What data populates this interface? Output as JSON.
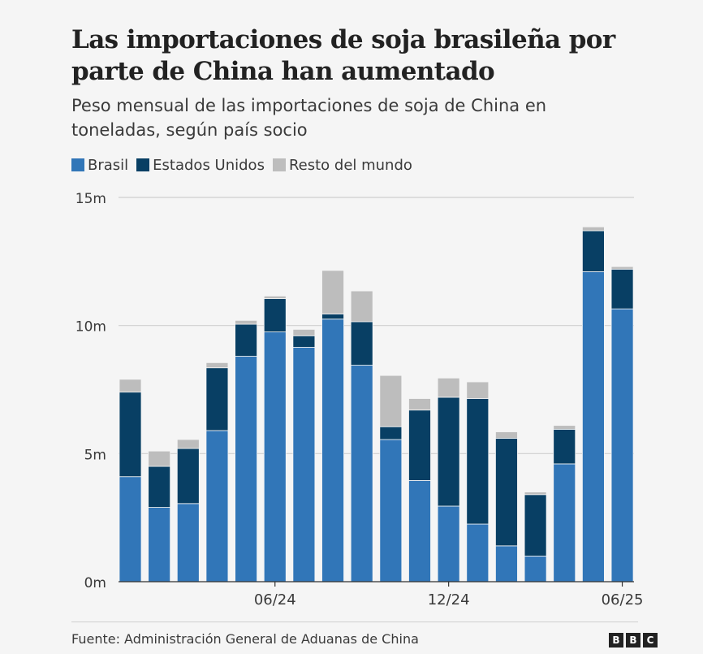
{
  "header": {
    "title": "Las importaciones de soja brasileña por parte de China han aumentado",
    "subtitle": "Peso mensual de las importaciones de soja de China en toneladas, según país socio"
  },
  "legend": [
    {
      "label": "Brasil",
      "color": "#3176b8"
    },
    {
      "label": "Estados Unidos",
      "color": "#083f64"
    },
    {
      "label": "Resto del mundo",
      "color": "#bdbdbd"
    }
  ],
  "footer": {
    "source": "Fuente: Administración General de Aduanas de China",
    "logo_letters": [
      "B",
      "B",
      "C"
    ]
  },
  "chart_data": {
    "type": "bar",
    "stacked": true,
    "categories": [
      "01/24",
      "02/24",
      "03/24",
      "04/24",
      "05/24",
      "06/24",
      "07/24",
      "08/24",
      "09/24",
      "10/24",
      "11/24",
      "12/24",
      "01/25",
      "02/25",
      "03/25",
      "04/25",
      "05/25",
      "06/25"
    ],
    "x_tick_labels": [
      "06/24",
      "12/24",
      "06/25"
    ],
    "y_ticks": [
      "0m",
      "5m",
      "10m",
      "15m"
    ],
    "ylim": [
      0,
      15
    ],
    "grid": true,
    "legend_position": "top-left",
    "series": [
      {
        "name": "Brasil",
        "color": "#3176b8",
        "values": [
          4.1,
          2.9,
          3.05,
          5.9,
          8.8,
          9.75,
          9.15,
          10.25,
          8.45,
          5.55,
          3.95,
          2.95,
          2.25,
          1.4,
          1.0,
          4.6,
          12.1,
          10.65
        ]
      },
      {
        "name": "Estados Unidos",
        "color": "#083f64",
        "values": [
          3.3,
          1.6,
          2.15,
          2.45,
          1.25,
          1.3,
          0.45,
          0.2,
          1.7,
          0.5,
          2.75,
          4.25,
          4.9,
          4.2,
          2.4,
          1.35,
          1.6,
          1.55
        ]
      },
      {
        "name": "Resto del mundo",
        "color": "#bdbdbd",
        "values": [
          0.5,
          0.6,
          0.35,
          0.2,
          0.15,
          0.1,
          0.25,
          1.7,
          1.2,
          2.0,
          0.45,
          0.75,
          0.65,
          0.25,
          0.1,
          0.15,
          0.15,
          0.1
        ]
      }
    ]
  }
}
